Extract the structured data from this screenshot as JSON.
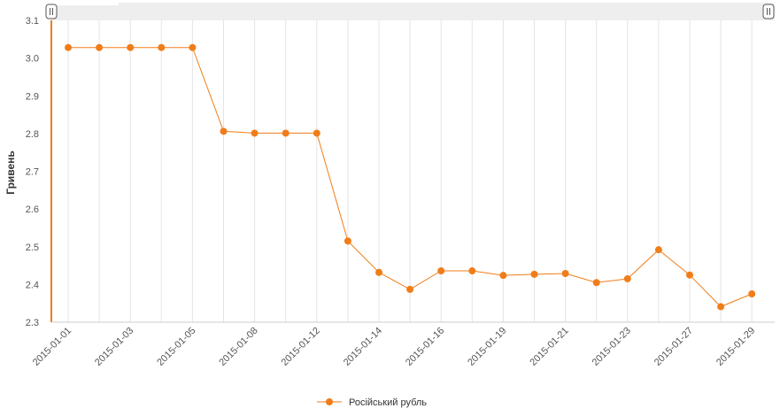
{
  "chart_data": {
    "type": "line",
    "ylabel": "Гривень",
    "ylim": [
      2.3,
      3.1
    ],
    "yticks": [
      "2.3",
      "2.4",
      "2.5",
      "2.6",
      "2.7",
      "2.8",
      "2.9",
      "3.0",
      "3.1"
    ],
    "grid": "vertical",
    "legend_position": "bottom-center",
    "series": [
      {
        "name": "Російський рубль",
        "color": "#f07d19",
        "x": [
          "2015-01-01",
          "2015-01-02",
          "2015-01-03",
          "2015-01-04",
          "2015-01-05",
          "2015-01-06",
          "2015-01-08",
          "2015-01-09",
          "2015-01-12",
          "2015-01-13",
          "2015-01-14",
          "2015-01-15",
          "2015-01-16",
          "2015-01-17",
          "2015-01-19",
          "2015-01-20",
          "2015-01-21",
          "2015-01-22",
          "2015-01-23",
          "2015-01-26",
          "2015-01-27",
          "2015-01-28",
          "2015-01-29"
        ],
        "values": [
          3.028,
          3.028,
          3.028,
          3.028,
          3.028,
          2.806,
          2.801,
          2.801,
          2.801,
          2.515,
          2.432,
          2.387,
          2.436,
          2.436,
          2.424,
          2.427,
          2.429,
          2.405,
          2.415,
          2.492,
          2.425,
          2.341,
          2.375
        ]
      }
    ],
    "xtick_labels": [
      "2015-01-01",
      "2015-01-03",
      "2015-01-05",
      "2015-01-08",
      "2015-01-12",
      "2015-01-14",
      "2015-01-16",
      "2015-01-19",
      "2015-01-21",
      "2015-01-23",
      "2015-01-27",
      "2015-01-29"
    ],
    "xtick_index": [
      0,
      2,
      4,
      6,
      8,
      10,
      12,
      14,
      16,
      18,
      20,
      22
    ]
  },
  "scroller": {
    "left_handle_icon": "scroll-handle-icon",
    "right_handle_icon": "scroll-handle-icon"
  }
}
